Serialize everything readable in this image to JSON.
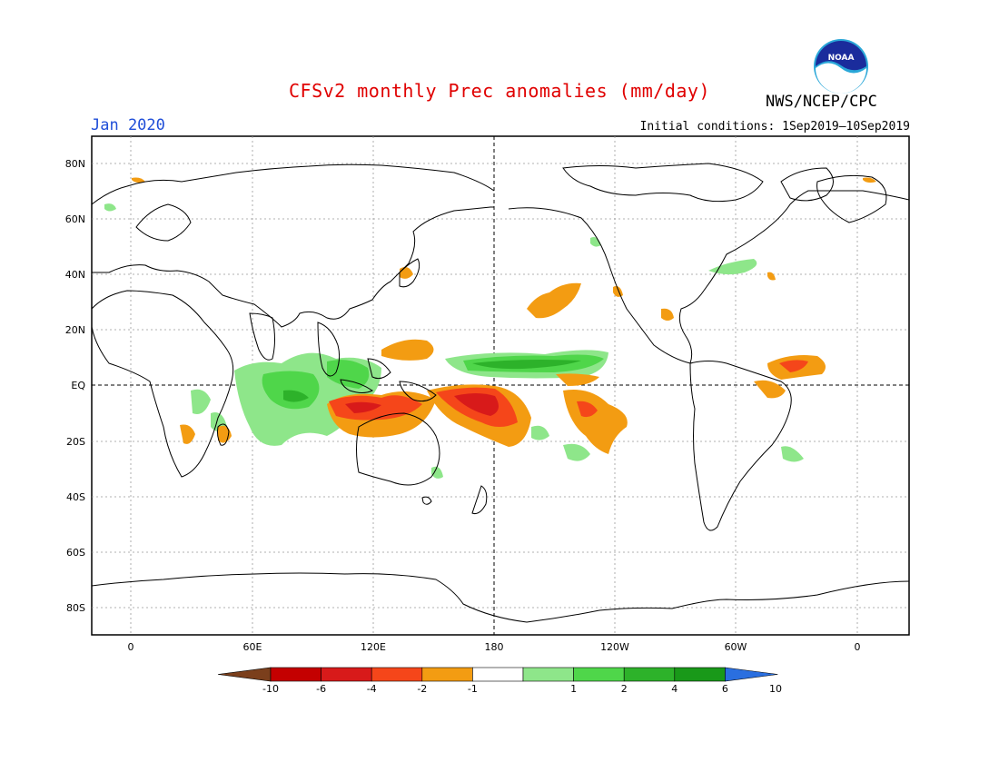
{
  "title": "CFSv2 monthly Prec anomalies (mm/day)",
  "agency": "NWS/NCEP/CPC",
  "logo_text": "NOAA",
  "period": "Jan 2020",
  "initial_conditions": "Initial conditions: 1Sep2019—10Sep2019",
  "map": {
    "lat_labels": [
      "80N",
      "60N",
      "40N",
      "20N",
      "EQ",
      "20S",
      "40S",
      "60S",
      "80S"
    ],
    "lon_labels": [
      "0",
      "60E",
      "120E",
      "180",
      "120W",
      "60W",
      "0"
    ]
  },
  "colorbar": {
    "tick_labels": [
      "-10",
      "-6",
      "-4",
      "-2",
      "-1",
      "1",
      "2",
      "4",
      "6",
      "10"
    ],
    "colors": [
      "#7b3f1c",
      "#c40000",
      "#d81a1a",
      "#f5461a",
      "#f39c12",
      "#ffffff",
      "#8ee68a",
      "#4fd64a",
      "#2db22a",
      "#199919",
      "#2a6fe0"
    ]
  },
  "anomaly_colors": {
    "dry_light": "#f39c12",
    "dry_mid": "#f5461a",
    "dry_strong": "#d81a1a",
    "wet_light": "#8ee68a",
    "wet_mid": "#4fd64a",
    "wet_strong": "#2db22a"
  }
}
